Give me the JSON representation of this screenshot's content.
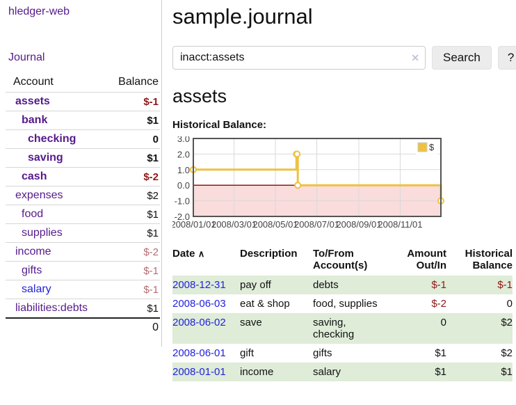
{
  "app": {
    "title": "hledger-web"
  },
  "colors": {
    "link_purple": "#551A8B",
    "link_blue": "#2222dd",
    "negative_strong": "#911717",
    "negative_soft": "#b56c72",
    "row_stripe_green": "#deecd8",
    "chart_series_yellow": "#EDC240",
    "chart_negative_region": "#fadcdc",
    "chart_zero_line": "#8b0000"
  },
  "sidebar": {
    "nav_journal": "Journal",
    "accounts": {
      "header_account": "Account",
      "header_balance": "Balance",
      "rows": [
        {
          "name": "assets",
          "balance": "$-1"
        },
        {
          "name": "bank",
          "balance": "$1"
        },
        {
          "name": "checking",
          "balance": "0"
        },
        {
          "name": "saving",
          "balance": "$1"
        },
        {
          "name": "cash",
          "balance": "$-2"
        },
        {
          "name": "expenses",
          "balance": "$2"
        },
        {
          "name": "food",
          "balance": "$1"
        },
        {
          "name": "supplies",
          "balance": "$1"
        },
        {
          "name": "income",
          "balance": "$-2"
        },
        {
          "name": "gifts",
          "balance": "$-1"
        },
        {
          "name": "salary",
          "balance": "$-1"
        },
        {
          "name": "liabilities:debts",
          "balance": "$1"
        }
      ],
      "total": "0"
    }
  },
  "main": {
    "title": "sample.journal",
    "search": {
      "value": "inacct:assets",
      "clear_icon": "✕",
      "button_label": "Search",
      "help_label": "?"
    },
    "account_heading": "assets",
    "chart_label": "Historical Balance:"
  },
  "chart_data": {
    "type": "line",
    "style": "step",
    "title": "Historical Balance",
    "legend": {
      "label": "$",
      "position": "top-right"
    },
    "xlim": [
      "2008-01-01",
      "2008-12-31"
    ],
    "ylim": [
      -2,
      3
    ],
    "grid": true,
    "yticks": [
      {
        "v": 3,
        "label": "3.0"
      },
      {
        "v": 2,
        "label": "2.0"
      },
      {
        "v": 1,
        "label": "1.0"
      },
      {
        "v": 0,
        "label": "0.0"
      },
      {
        "v": -1,
        "label": "-1.0"
      },
      {
        "v": -2,
        "label": "-2.0"
      }
    ],
    "xticks": [
      {
        "x": "2008-01-01",
        "label": "2008/01/01"
      },
      {
        "x": "2008-03-01",
        "label": "2008/03/01"
      },
      {
        "x": "2008-05-01",
        "label": "2008/05/01"
      },
      {
        "x": "2008-07-01",
        "label": "2008/07/01"
      },
      {
        "x": "2008-09-01",
        "label": "2008/09/01"
      },
      {
        "x": "2008-11-01",
        "label": "2008/11/01"
      }
    ],
    "series": [
      {
        "name": "$",
        "color": "#EDC240",
        "points": [
          {
            "x": "2008-01-01",
            "y": 1
          },
          {
            "x": "2008-06-01",
            "y": 2
          },
          {
            "x": "2008-06-02",
            "y": 2
          },
          {
            "x": "2008-06-03",
            "y": 0
          },
          {
            "x": "2008-12-31",
            "y": -1
          }
        ]
      }
    ],
    "markings": {
      "negative_region_fill": "#fadcdc",
      "zero_line_color": "#8b0000",
      "plot_border_color": "#545454",
      "gridline_color": "#d9d9d9"
    }
  },
  "register": {
    "headers": {
      "date": "Date",
      "description": "Description",
      "accounts": "To/From Account(s)",
      "amount": "Amount Out/In",
      "balance": "Historical Balance"
    },
    "sort_icon": "∧",
    "rows": [
      {
        "date": "2008-12-31",
        "description": "pay off",
        "accounts": "debts",
        "amount": "$-1",
        "balance": "$-1"
      },
      {
        "date": "2008-06-03",
        "description": "eat & shop",
        "accounts": "food, supplies",
        "amount": "$-2",
        "balance": "0"
      },
      {
        "date": "2008-06-02",
        "description": "save",
        "accounts": "saving, checking",
        "amount": "0",
        "balance": "$2"
      },
      {
        "date": "2008-06-01",
        "description": "gift",
        "accounts": "gifts",
        "amount": "$1",
        "balance": "$2"
      },
      {
        "date": "2008-01-01",
        "description": "income",
        "accounts": "salary",
        "amount": "$1",
        "balance": "$1"
      }
    ]
  }
}
